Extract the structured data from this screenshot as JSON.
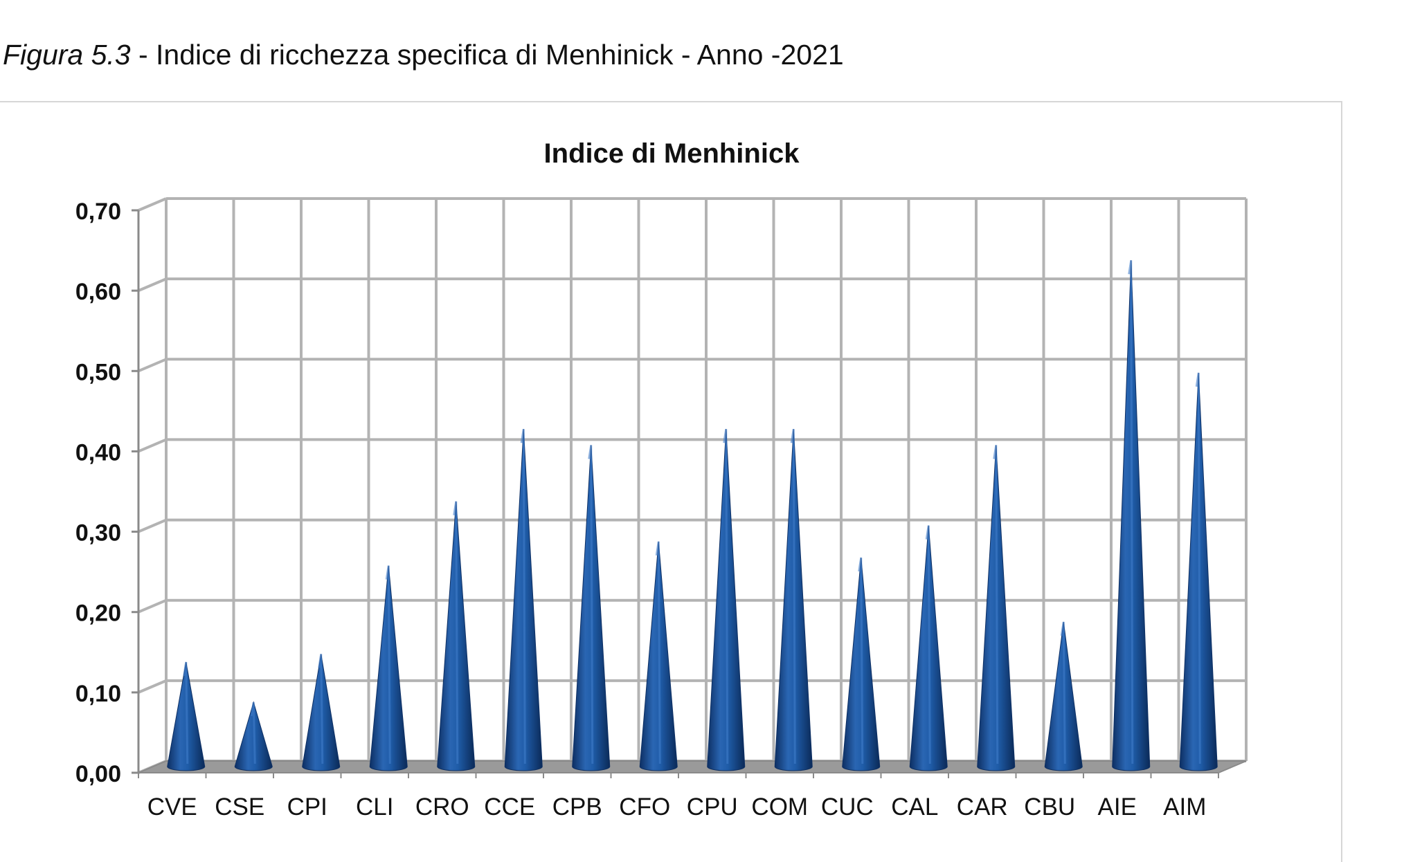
{
  "caption": {
    "figure_label": "Figura 5.3",
    "text": " - Indice di ricchezza specifica di Menhinick - Anno -2021"
  },
  "colors": {
    "cone_dark": "#0d2f63",
    "cone_mid": "#1f5ca8",
    "cone_light": "#3f7cc8",
    "grid": "#b3b3b3"
  },
  "chart_data": {
    "type": "bar",
    "style": "3d-cone",
    "title": "Indice di Menhinick",
    "xlabel": "",
    "ylabel": "",
    "ylim": [
      0,
      0.7
    ],
    "ytick_values": [
      0,
      0.1,
      0.2,
      0.3,
      0.4,
      0.5,
      0.6,
      0.7
    ],
    "ytick_labels": [
      "0,00",
      "0,10",
      "0,20",
      "0,30",
      "0,40",
      "0,50",
      "0,60",
      "0,70"
    ],
    "categories": [
      "CVE",
      "CSE",
      "CPI",
      "CLI",
      "CRO",
      "CCE",
      "CPB",
      "CFO",
      "CPU",
      "COM",
      "CUC",
      "CAL",
      "CAR",
      "CBU",
      "AIE",
      "AIM"
    ],
    "values": [
      0.13,
      0.08,
      0.14,
      0.25,
      0.33,
      0.42,
      0.4,
      0.28,
      0.42,
      0.42,
      0.26,
      0.3,
      0.4,
      0.18,
      0.63,
      0.49
    ],
    "grid": true,
    "legend": "none"
  }
}
